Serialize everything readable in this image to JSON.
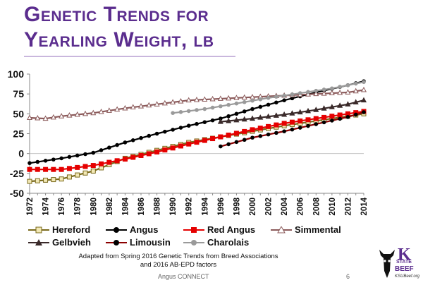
{
  "slide": {
    "title_line1": "Genetic Trends for",
    "title_line2": "Yearling Weight, lb",
    "caption_line1": "Adapted from Spring 2016 Genetic Trends from Breed Associations",
    "caption_line2": "and 2016 AB-EPD factors",
    "footer": "Angus CONNECT",
    "page_number": "6",
    "logo": {
      "k": "K",
      "state": "STATE",
      "beef": "BEEF",
      "url": "KSUBeef.org"
    }
  },
  "chart_data": {
    "type": "line",
    "title": "Genetic Trends for Yearling Weight, lb",
    "xlabel": "",
    "ylabel": "",
    "ylim": [
      -50,
      100
    ],
    "yticks": [
      -50,
      -25,
      0,
      25,
      50,
      75,
      100
    ],
    "xlim": [
      1972,
      2014
    ],
    "xticks": [
      1972,
      1974,
      1976,
      1978,
      1980,
      1982,
      1984,
      1986,
      1988,
      1990,
      1992,
      1994,
      1996,
      1998,
      2000,
      2002,
      2004,
      2006,
      2008,
      2010,
      2012,
      2014
    ],
    "grid": false,
    "series": [
      {
        "name": "Hereford",
        "color": "#f2e8b5",
        "edge": "#7a6a1c",
        "marker": "square",
        "x": [
          1972,
          1976,
          1980,
          1984,
          1988,
          1992,
          1996,
          2000,
          2004,
          2008,
          2012,
          2014
        ],
        "y": [
          -35,
          -32,
          -22,
          -6,
          4,
          14,
          21,
          28,
          35,
          41,
          47,
          50
        ]
      },
      {
        "name": "Angus",
        "color": "#000000",
        "edge": "#000000",
        "marker": "dot",
        "x": [
          1972,
          1976,
          1980,
          1984,
          1988,
          1992,
          1996,
          2000,
          2004,
          2008,
          2012,
          2014
        ],
        "y": [
          -12,
          -6,
          1,
          14,
          25,
          35,
          44,
          56,
          67,
          77,
          86,
          91
        ]
      },
      {
        "name": "Red Angus",
        "color": "#e50000",
        "edge": "#e50000",
        "marker": "square",
        "x": [
          1972,
          1976,
          1980,
          1984,
          1988,
          1992,
          1996,
          2000,
          2004,
          2008,
          2012,
          2014
        ],
        "y": [
          -20,
          -20,
          -15,
          -7,
          2,
          12,
          21,
          30,
          38,
          44,
          50,
          53
        ]
      },
      {
        "name": "Simmental",
        "color": "#ffffff",
        "edge": "#8b5a5a",
        "marker": "triangle",
        "x": [
          1972,
          1974,
          1976,
          1980,
          1984,
          1988,
          1992,
          1996,
          2000,
          2004,
          2008,
          2012,
          2014
        ],
        "y": [
          45,
          44,
          47,
          51,
          57,
          62,
          67,
          69,
          71,
          73,
          75,
          77,
          80
        ]
      },
      {
        "name": "Gelbvieh",
        "color": "#3a2a2a",
        "edge": "#3a2a2a",
        "marker": "triangle",
        "x": [
          1996,
          2000,
          2004,
          2008,
          2012,
          2014
        ],
        "y": [
          40,
          44,
          49,
          55,
          62,
          67
        ]
      },
      {
        "name": "Limousin",
        "color": "#8b0000",
        "edge": "#000000",
        "marker": "dot",
        "x": [
          1996,
          2000,
          2004,
          2008,
          2012,
          2014
        ],
        "y": [
          9,
          20,
          28,
          37,
          46,
          52
        ]
      },
      {
        "name": "Charolais",
        "color": "#9a9a9a",
        "edge": "#9a9a9a",
        "marker": "dot",
        "x": [
          1990,
          1994,
          1998,
          2002,
          2006,
          2010,
          2014
        ],
        "y": [
          51,
          56,
          63,
          70,
          76,
          82,
          90
        ]
      }
    ]
  }
}
